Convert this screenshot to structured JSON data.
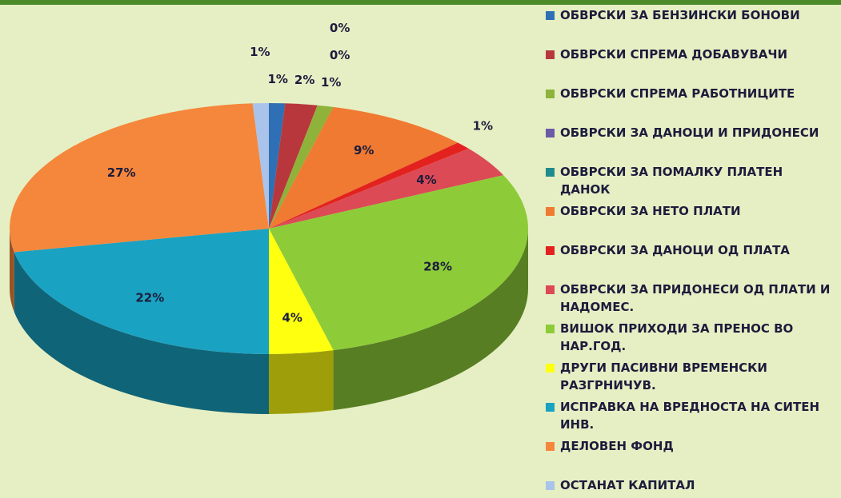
{
  "chart_data": {
    "type": "pie",
    "categories": [
      "ОБВРСКИ ЗА БЕНЗИНСКИ БОНОВИ",
      "ОБВРСКИ СПРЕМА ДОБАВУВАЧИ",
      "ОБВРСКИ СПРЕМА РАБОТНИЦИТЕ",
      "ОБВРСКИ ЗА ДАНОЦИ И ПРИДОНЕСИ",
      "ОБВРСКИ ЗА ПОМАЛКУ ПЛАТЕН ДАНОК",
      "ОБВРСКИ ЗА НЕТО ПЛАТИ",
      "ОБВРСКИ ЗА ДАНОЦИ ОД ПЛАТА",
      "ОБВРСКИ ЗА ПРИДОНЕСИ ОД ПЛАТИ И НАДОМЕС.",
      "ВИШОК ПРИХОДИ ЗА ПРЕНОС ВО НАР.ГОД.",
      "ДРУГИ ПАСИВНИ ВРЕМЕНСКИ РАЗГРНИЧУВ.",
      "ИСПРАВКА НА ВРЕДНОСТА НА СИТЕН ИНВ.",
      "ДЕЛОВЕН ФОНД",
      "ОСТАНАТ КАПИТАЛ"
    ],
    "values": [
      1,
      2,
      1,
      0,
      0,
      9,
      1,
      4,
      28,
      4,
      22,
      27,
      1
    ],
    "value_labels": [
      "1%",
      "2%",
      "1%",
      "0%",
      "0%",
      "9%",
      "1%",
      "4%",
      "28%",
      "4%",
      "22%",
      "27%",
      "1%"
    ],
    "colors": [
      "#2f6fb5",
      "#b8373c",
      "#8fb23a",
      "#6c5ba6",
      "#1f8b8c",
      "#f07a32",
      "#e3221f",
      "#dc4a55",
      "#8dcc38",
      "#ffff10",
      "#1aa2c2",
      "#f5873c",
      "#aac3ea"
    ],
    "legend": "right"
  }
}
